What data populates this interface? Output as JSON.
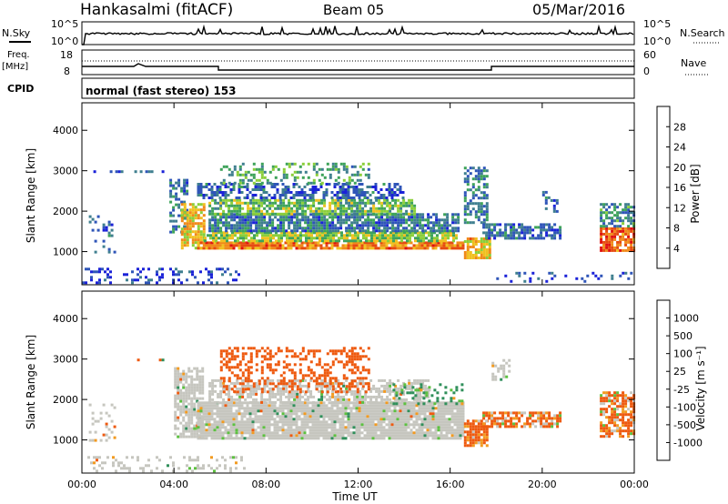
{
  "header": {
    "station": "Hankasalmi (fitACF)",
    "beam": "Beam 05",
    "date": "05/Mar/2016"
  },
  "strip": {
    "nsky_label": "N.Sky",
    "nsearch_label": "N.Search",
    "nsky_ticks": [
      "10^5",
      "10^0"
    ],
    "nsearch_ticks": [
      "10^5",
      "10^0"
    ],
    "freq_label_1": "Freq.",
    "freq_label_2": "[MHz]",
    "freq_ticks": [
      "18",
      "8"
    ],
    "nave_label": "Nave",
    "nave_ticks": [
      "60",
      "0"
    ],
    "cpid_label": "CPID",
    "cpid_value": "normal (fast stereo) 153"
  },
  "colors": {
    "power": [
      "#1b22d8",
      "#2f55b8",
      "#3f7f8f",
      "#3ea35a",
      "#8bcf3a",
      "#f0c020",
      "#f08a1a",
      "#e64a10",
      "#e01010"
    ],
    "velocity_neg": [
      "#e01010",
      "#ee5a10",
      "#f29a20"
    ],
    "velocity_mid": "#c6c6bf",
    "velocity_pos": [
      "#5cc040",
      "#2f8f5a",
      "#2a6aa8",
      "#1f3fc4"
    ]
  },
  "chart_data": [
    {
      "type": "heatmap",
      "name": "power",
      "xlabel": "",
      "ylabel": "Slant Range [km]",
      "colorbar_label": "Power [dB]",
      "colorbar_ticks": [
        "28",
        "24",
        "20",
        "16",
        "12",
        "8",
        "4"
      ],
      "colorbar_range": [
        0,
        32
      ],
      "x_ticks": [
        "00:00",
        "04:00",
        "08:00",
        "12:00",
        "16:00",
        "20:00",
        "00:00"
      ],
      "y_ticks": [
        "1000",
        "2000",
        "3000",
        "4000"
      ],
      "xlim": [
        0,
        24
      ],
      "ylim": [
        180,
        4680
      ],
      "regions": [
        {
          "t": [
            0.3,
            1.4
          ],
          "r": [
            1000,
            1900
          ],
          "v": 6,
          "d": 0.22
        },
        {
          "t": [
            0.0,
            7.0
          ],
          "r": [
            230,
            600
          ],
          "v": 4,
          "d": 0.3
        },
        {
          "t": [
            3.8,
            4.6
          ],
          "r": [
            1500,
            2800
          ],
          "v": 8,
          "d": 0.45
        },
        {
          "t": [
            4.3,
            5.3
          ],
          "r": [
            1100,
            2200
          ],
          "v": 20,
          "d": 0.8
        },
        {
          "t": [
            5.0,
            16.6
          ],
          "r": [
            1050,
            1250
          ],
          "v": 24,
          "d": 0.92
        },
        {
          "t": [
            5.3,
            16.3
          ],
          "r": [
            1250,
            1500
          ],
          "v": 16,
          "d": 0.85
        },
        {
          "t": [
            5.5,
            16.3
          ],
          "r": [
            1500,
            1950
          ],
          "v": 8,
          "d": 0.82
        },
        {
          "t": [
            5.5,
            14.5
          ],
          "r": [
            1950,
            2300
          ],
          "v": 14,
          "d": 0.75
        },
        {
          "t": [
            5.0,
            14.0
          ],
          "r": [
            2300,
            2700
          ],
          "v": 6,
          "d": 0.55
        },
        {
          "t": [
            6.0,
            12.5
          ],
          "r": [
            2700,
            3200
          ],
          "v": 12,
          "d": 0.35
        },
        {
          "t": [
            0.5,
            4.0
          ],
          "r": [
            2960,
            3010
          ],
          "v": 5,
          "d": 0.35
        },
        {
          "t": [
            16.6,
            17.6
          ],
          "r": [
            1700,
            3100
          ],
          "v": 9,
          "d": 0.6
        },
        {
          "t": [
            16.6,
            17.7
          ],
          "r": [
            850,
            1350
          ],
          "v": 20,
          "d": 0.75
        },
        {
          "t": [
            17.4,
            20.8
          ],
          "r": [
            1350,
            1700
          ],
          "v": 7,
          "d": 0.7
        },
        {
          "t": [
            20.0,
            20.6
          ],
          "r": [
            2000,
            2500
          ],
          "v": 6,
          "d": 0.4
        },
        {
          "t": [
            22.5,
            24.0
          ],
          "r": [
            1000,
            1600
          ],
          "v": 26,
          "d": 0.85
        },
        {
          "t": [
            22.5,
            24.0
          ],
          "r": [
            1600,
            2200
          ],
          "v": 10,
          "d": 0.6
        },
        {
          "t": [
            18.0,
            24.0
          ],
          "r": [
            230,
            500
          ],
          "v": 4,
          "d": 0.15
        }
      ]
    },
    {
      "type": "heatmap",
      "name": "velocity",
      "xlabel": "Time UT",
      "ylabel": "Slant Range [km]",
      "colorbar_label": "Velocity [m s⁻¹]",
      "colorbar_ticks": [
        "1000",
        "500",
        "100",
        "25",
        "-25",
        "-100",
        "-500",
        "-1000"
      ],
      "colorbar_range": [
        -1000,
        1000
      ],
      "x_ticks": [
        "00:00",
        "04:00",
        "08:00",
        "12:00",
        "16:00",
        "20:00",
        "00:00"
      ],
      "y_ticks": [
        "1000",
        "2000",
        "3000",
        "4000"
      ],
      "xlim": [
        0,
        24
      ],
      "ylim": [
        180,
        4680
      ],
      "regions": [
        {
          "t": [
            0.3,
            1.4
          ],
          "r": [
            1000,
            1900
          ],
          "v": 0,
          "d": 0.2
        },
        {
          "t": [
            0.0,
            7.0
          ],
          "r": [
            230,
            600
          ],
          "v": 0,
          "d": 0.25
        },
        {
          "t": [
            4.0,
            5.3
          ],
          "r": [
            1100,
            2800
          ],
          "v": 0,
          "d": 0.7
        },
        {
          "t": [
            5.0,
            16.6
          ],
          "r": [
            1050,
            1950
          ],
          "v": 0,
          "d": 0.92
        },
        {
          "t": [
            5.5,
            15.0
          ],
          "r": [
            1950,
            2500
          ],
          "v": 0,
          "d": 0.6
        },
        {
          "t": [
            6.0,
            12.5
          ],
          "r": [
            2200,
            3300
          ],
          "v": -300,
          "d": 0.35
        },
        {
          "t": [
            0.5,
            4.0
          ],
          "r": [
            2960,
            3010
          ],
          "v": -60,
          "d": 0.3
        },
        {
          "t": [
            16.6,
            17.6
          ],
          "r": [
            850,
            1500
          ],
          "v": -200,
          "d": 0.8
        },
        {
          "t": [
            17.4,
            20.8
          ],
          "r": [
            1300,
            1700
          ],
          "v": -150,
          "d": 0.65
        },
        {
          "t": [
            17.8,
            18.6
          ],
          "r": [
            2500,
            3000
          ],
          "v": 0,
          "d": 0.5
        },
        {
          "t": [
            22.5,
            24.0
          ],
          "r": [
            1100,
            2200
          ],
          "v": -150,
          "d": 0.7
        },
        {
          "t": [
            13.5,
            16.5
          ],
          "r": [
            1900,
            2400
          ],
          "v": 150,
          "d": 0.35
        }
      ]
    }
  ]
}
